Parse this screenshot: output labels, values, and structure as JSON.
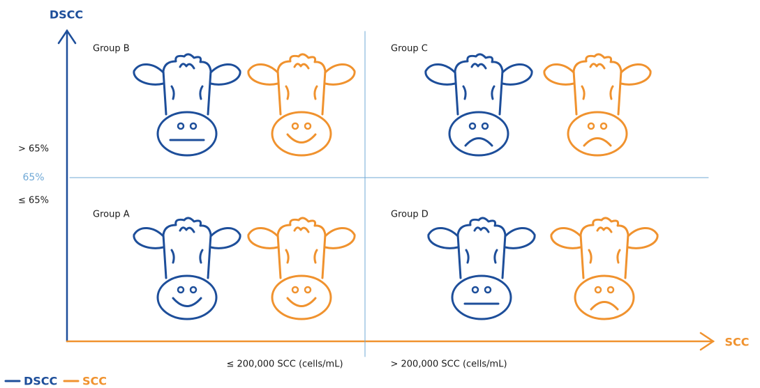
{
  "axes": {
    "y_label": "DSCC",
    "x_label": "SCC",
    "threshold": "65%",
    "above": "> 65%",
    "below": "≤ 65%",
    "x_low": "≤ 200,000 SCC (cells/mL)",
    "x_high": "> 200,000 SCC (cells/mL)"
  },
  "groups": [
    "Group B",
    "Group C",
    "Group A",
    "Group D"
  ],
  "legend": [
    "DSCC",
    "SCC"
  ]
}
